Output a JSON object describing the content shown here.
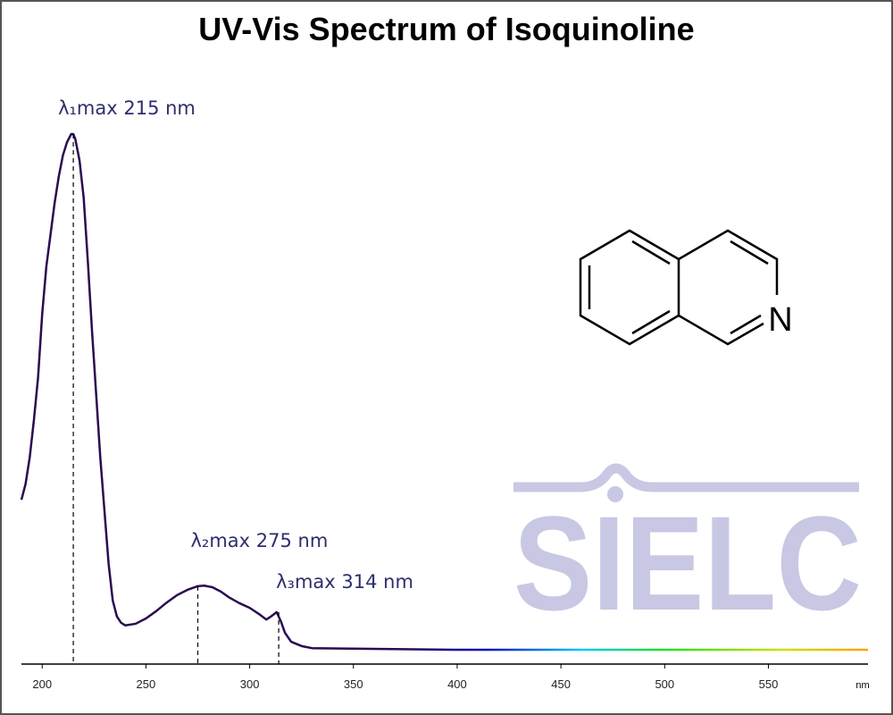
{
  "chart_data": {
    "type": "line",
    "title": "UV-Vis Spectrum of Isoquinoline",
    "x_label": "nm",
    "x": [
      190,
      192,
      194,
      196,
      198,
      200,
      202,
      204,
      206,
      208,
      210,
      212,
      214,
      215,
      216,
      218,
      220,
      222,
      224,
      226,
      228,
      230,
      232,
      234,
      236,
      238,
      240,
      245,
      250,
      255,
      260,
      265,
      270,
      275,
      278,
      282,
      286,
      290,
      295,
      300,
      305,
      308,
      310,
      313,
      315,
      317,
      320,
      325,
      330,
      350,
      400,
      450,
      500,
      550,
      598
    ],
    "series": [
      {
        "color": "#2b0b50",
        "values": [
          0.31,
          0.34,
          0.39,
          0.46,
          0.54,
          0.66,
          0.75,
          0.81,
          0.87,
          0.92,
          0.96,
          0.985,
          1.0,
          1.0,
          0.99,
          0.95,
          0.88,
          0.76,
          0.63,
          0.51,
          0.39,
          0.29,
          0.19,
          0.12,
          0.09,
          0.078,
          0.073,
          0.076,
          0.086,
          0.1,
          0.116,
          0.13,
          0.14,
          0.147,
          0.148,
          0.145,
          0.137,
          0.126,
          0.115,
          0.106,
          0.093,
          0.084,
          0.089,
          0.098,
          0.081,
          0.059,
          0.042,
          0.034,
          0.03,
          0.029,
          0.027,
          0.027,
          0.027,
          0.027,
          0.027
        ]
      }
    ],
    "xlim": [
      190,
      598
    ],
    "ylim": [
      0,
      1
    ],
    "xticks": [
      200,
      250,
      300,
      350,
      400,
      450,
      500,
      550
    ],
    "annotations": [
      {
        "label": "λ₁max  215 nm",
        "x": 215,
        "y": 1.0
      },
      {
        "label": "λ₂max  275 nm",
        "x": 275,
        "y": 0.147
      },
      {
        "label": "λ₃max  314 nm",
        "x": 314,
        "y": 0.098
      }
    ],
    "watermark": "SIELC",
    "structure_label": "N"
  }
}
